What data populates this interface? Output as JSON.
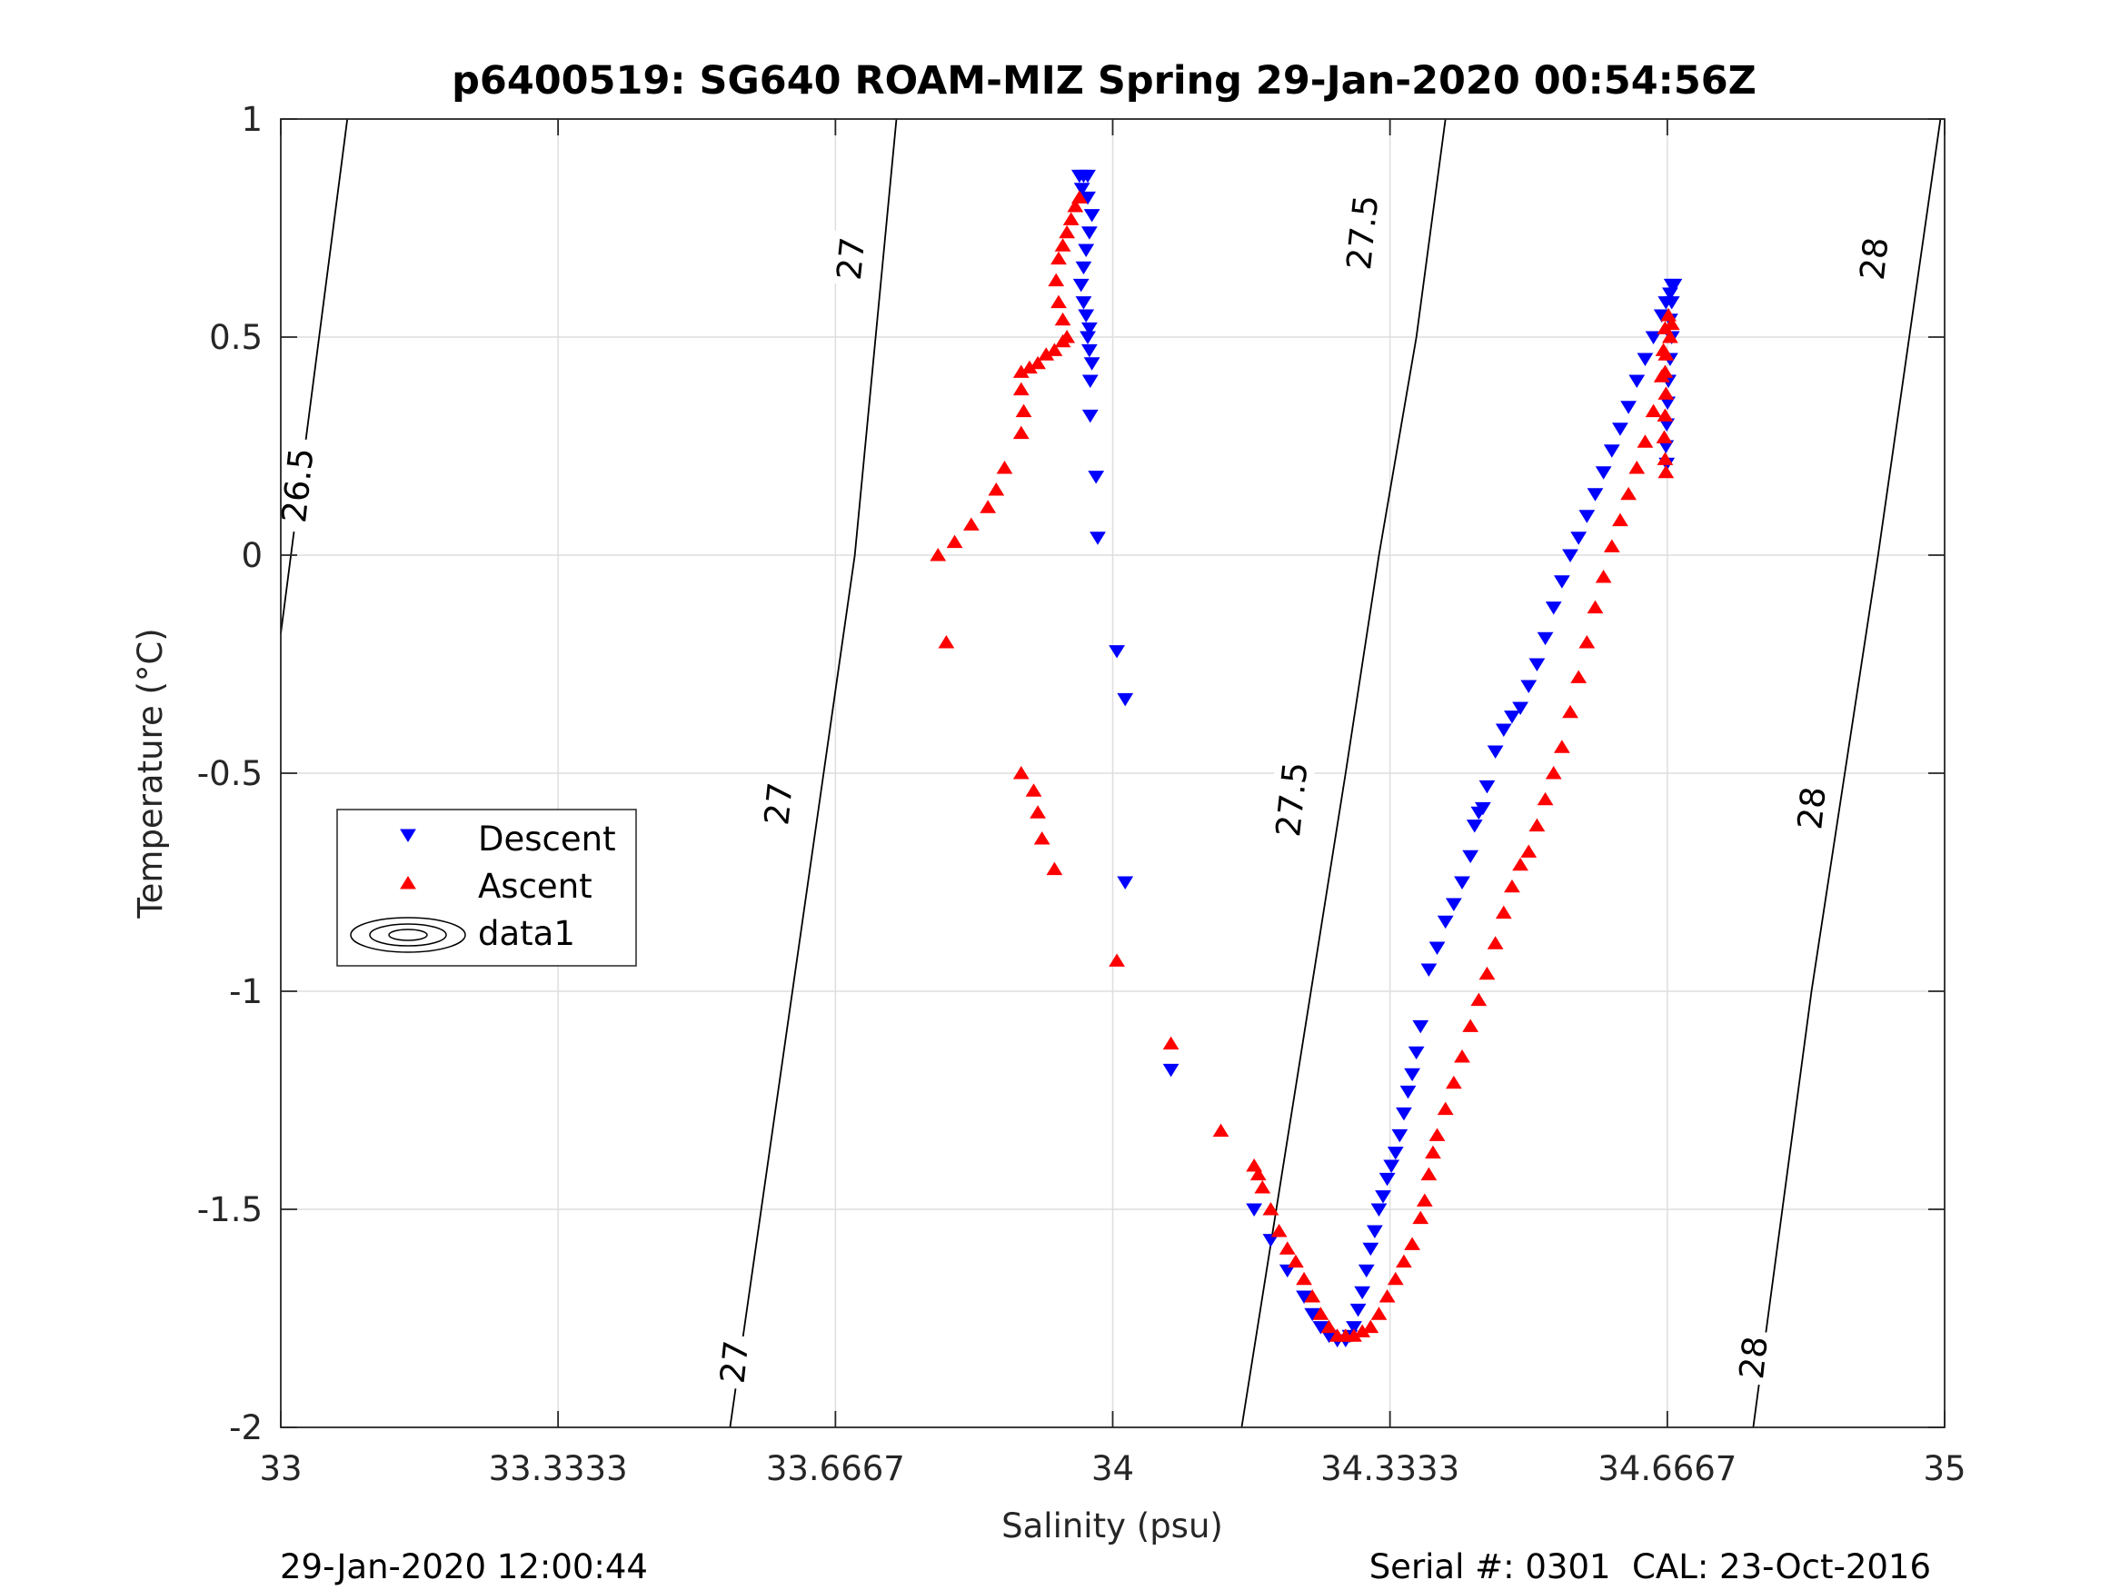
{
  "chart_data": {
    "type": "scatter",
    "title": "p6400519: SG640 ROAM-MIZ Spring 29-Jan-2020 00:54:56Z",
    "xlabel": "Salinity (psu)",
    "ylabel": "Temperature (°C)",
    "xlim": [
      33,
      35
    ],
    "ylim": [
      -2,
      1
    ],
    "xticks": [
      33,
      33.3333,
      33.6667,
      34,
      34.3333,
      34.6667,
      35
    ],
    "xtick_labels": [
      "33",
      "33.3333",
      "33.6667",
      "34",
      "34.3333",
      "34.6667",
      "35"
    ],
    "yticks": [
      1,
      0.5,
      0,
      -0.5,
      -1,
      -1.5,
      -2
    ],
    "ytick_labels": [
      "1",
      "0.5",
      "0",
      "-0.5",
      "-1",
      "-1.5",
      "-2"
    ],
    "grid": true,
    "legend": {
      "placement": "left-middle",
      "entries": [
        "Descent",
        "Ascent",
        "data1"
      ]
    },
    "series": [
      {
        "name": "Descent",
        "color": "#0000ff",
        "marker": "triangle-down",
        "points": [
          [
            33.96,
            0.87
          ],
          [
            33.965,
            0.87
          ],
          [
            33.97,
            0.87
          ],
          [
            33.963,
            0.84
          ],
          [
            33.97,
            0.82
          ],
          [
            33.975,
            0.78
          ],
          [
            33.972,
            0.74
          ],
          [
            33.968,
            0.7
          ],
          [
            33.965,
            0.66
          ],
          [
            33.962,
            0.62
          ],
          [
            33.965,
            0.58
          ],
          [
            33.968,
            0.55
          ],
          [
            33.972,
            0.52
          ],
          [
            33.97,
            0.5
          ],
          [
            33.972,
            0.47
          ],
          [
            33.975,
            0.44
          ],
          [
            33.973,
            0.4
          ],
          [
            33.973,
            0.32
          ],
          [
            33.98,
            0.18
          ],
          [
            33.982,
            0.04
          ],
          [
            34.005,
            -0.22
          ],
          [
            34.015,
            -0.33
          ],
          [
            34.015,
            -0.75
          ],
          [
            34.07,
            -1.18
          ],
          [
            34.17,
            -1.5
          ],
          [
            34.19,
            -1.57
          ],
          [
            34.21,
            -1.64
          ],
          [
            34.23,
            -1.7
          ],
          [
            34.24,
            -1.74
          ],
          [
            34.25,
            -1.77
          ],
          [
            34.26,
            -1.79
          ],
          [
            34.27,
            -1.8
          ],
          [
            34.28,
            -1.8
          ],
          [
            34.285,
            -1.79
          ],
          [
            34.29,
            -1.77
          ],
          [
            34.295,
            -1.73
          ],
          [
            34.3,
            -1.69
          ],
          [
            34.305,
            -1.64
          ],
          [
            34.31,
            -1.59
          ],
          [
            34.315,
            -1.55
          ],
          [
            34.32,
            -1.5
          ],
          [
            34.325,
            -1.47
          ],
          [
            34.33,
            -1.43
          ],
          [
            34.335,
            -1.4
          ],
          [
            34.34,
            -1.37
          ],
          [
            34.345,
            -1.33
          ],
          [
            34.35,
            -1.28
          ],
          [
            34.355,
            -1.23
          ],
          [
            34.36,
            -1.19
          ],
          [
            34.365,
            -1.14
          ],
          [
            34.37,
            -1.08
          ],
          [
            34.38,
            -0.95
          ],
          [
            34.39,
            -0.9
          ],
          [
            34.4,
            -0.84
          ],
          [
            34.41,
            -0.8
          ],
          [
            34.42,
            -0.75
          ],
          [
            34.43,
            -0.69
          ],
          [
            34.435,
            -0.62
          ],
          [
            34.44,
            -0.59
          ],
          [
            34.445,
            -0.58
          ],
          [
            34.45,
            -0.53
          ],
          [
            34.46,
            -0.45
          ],
          [
            34.47,
            -0.4
          ],
          [
            34.48,
            -0.37
          ],
          [
            34.49,
            -0.35
          ],
          [
            34.5,
            -0.3
          ],
          [
            34.51,
            -0.25
          ],
          [
            34.52,
            -0.19
          ],
          [
            34.53,
            -0.12
          ],
          [
            34.54,
            -0.06
          ],
          [
            34.55,
            0.0
          ],
          [
            34.56,
            0.04
          ],
          [
            34.57,
            0.09
          ],
          [
            34.58,
            0.14
          ],
          [
            34.59,
            0.19
          ],
          [
            34.6,
            0.24
          ],
          [
            34.61,
            0.29
          ],
          [
            34.62,
            0.34
          ],
          [
            34.63,
            0.4
          ],
          [
            34.64,
            0.45
          ],
          [
            34.65,
            0.5
          ],
          [
            34.66,
            0.55
          ],
          [
            34.665,
            0.58
          ],
          [
            34.67,
            0.6
          ],
          [
            34.672,
            0.62
          ],
          [
            34.675,
            0.62
          ],
          [
            34.672,
            0.58
          ],
          [
            34.67,
            0.54
          ],
          [
            34.672,
            0.5
          ],
          [
            34.67,
            0.45
          ],
          [
            34.668,
            0.4
          ],
          [
            34.667,
            0.35
          ],
          [
            34.666,
            0.3
          ],
          [
            34.665,
            0.25
          ],
          [
            34.666,
            0.21
          ]
        ]
      },
      {
        "name": "Ascent",
        "color": "#ff0000",
        "marker": "triangle-up",
        "points": [
          [
            33.96,
            0.82
          ],
          [
            33.955,
            0.8
          ],
          [
            33.95,
            0.77
          ],
          [
            33.945,
            0.74
          ],
          [
            33.94,
            0.71
          ],
          [
            33.935,
            0.68
          ],
          [
            33.932,
            0.63
          ],
          [
            33.935,
            0.58
          ],
          [
            33.94,
            0.54
          ],
          [
            33.945,
            0.5
          ],
          [
            33.94,
            0.49
          ],
          [
            33.93,
            0.47
          ],
          [
            33.92,
            0.46
          ],
          [
            33.91,
            0.44
          ],
          [
            33.9,
            0.43
          ],
          [
            33.89,
            0.42
          ],
          [
            33.89,
            0.38
          ],
          [
            33.893,
            0.33
          ],
          [
            33.89,
            0.28
          ],
          [
            33.87,
            0.2
          ],
          [
            33.86,
            0.15
          ],
          [
            33.85,
            0.11
          ],
          [
            33.83,
            0.07
          ],
          [
            33.81,
            0.03
          ],
          [
            33.79,
            -0.0
          ],
          [
            33.8,
            -0.2
          ],
          [
            33.89,
            -0.5
          ],
          [
            33.905,
            -0.54
          ],
          [
            33.91,
            -0.59
          ],
          [
            33.915,
            -0.65
          ],
          [
            33.93,
            -0.72
          ],
          [
            34.005,
            -0.93
          ],
          [
            34.07,
            -1.12
          ],
          [
            34.13,
            -1.32
          ],
          [
            34.17,
            -1.4
          ],
          [
            34.175,
            -1.42
          ],
          [
            34.18,
            -1.45
          ],
          [
            34.19,
            -1.5
          ],
          [
            34.2,
            -1.55
          ],
          [
            34.21,
            -1.59
          ],
          [
            34.22,
            -1.62
          ],
          [
            34.23,
            -1.66
          ],
          [
            34.24,
            -1.7
          ],
          [
            34.25,
            -1.74
          ],
          [
            34.26,
            -1.77
          ],
          [
            34.27,
            -1.79
          ],
          [
            34.28,
            -1.79
          ],
          [
            34.29,
            -1.79
          ],
          [
            34.3,
            -1.78
          ],
          [
            34.31,
            -1.77
          ],
          [
            34.32,
            -1.74
          ],
          [
            34.33,
            -1.7
          ],
          [
            34.34,
            -1.66
          ],
          [
            34.35,
            -1.62
          ],
          [
            34.36,
            -1.58
          ],
          [
            34.37,
            -1.52
          ],
          [
            34.375,
            -1.48
          ],
          [
            34.38,
            -1.42
          ],
          [
            34.385,
            -1.37
          ],
          [
            34.39,
            -1.33
          ],
          [
            34.4,
            -1.27
          ],
          [
            34.41,
            -1.21
          ],
          [
            34.42,
            -1.15
          ],
          [
            34.43,
            -1.08
          ],
          [
            34.44,
            -1.02
          ],
          [
            34.45,
            -0.96
          ],
          [
            34.46,
            -0.89
          ],
          [
            34.47,
            -0.82
          ],
          [
            34.48,
            -0.76
          ],
          [
            34.49,
            -0.71
          ],
          [
            34.5,
            -0.68
          ],
          [
            34.51,
            -0.62
          ],
          [
            34.52,
            -0.56
          ],
          [
            34.53,
            -0.5
          ],
          [
            34.54,
            -0.44
          ],
          [
            34.55,
            -0.36
          ],
          [
            34.56,
            -0.28
          ],
          [
            34.57,
            -0.2
          ],
          [
            34.58,
            -0.12
          ],
          [
            34.59,
            -0.05
          ],
          [
            34.6,
            0.02
          ],
          [
            34.61,
            0.08
          ],
          [
            34.62,
            0.14
          ],
          [
            34.63,
            0.2
          ],
          [
            34.64,
            0.26
          ],
          [
            34.65,
            0.33
          ],
          [
            34.66,
            0.41
          ],
          [
            34.665,
            0.46
          ],
          [
            34.67,
            0.5
          ],
          [
            34.672,
            0.53
          ],
          [
            34.668,
            0.55
          ],
          [
            34.664,
            0.52
          ],
          [
            34.662,
            0.47
          ],
          [
            34.664,
            0.42
          ],
          [
            34.665,
            0.37
          ],
          [
            34.664,
            0.32
          ],
          [
            34.663,
            0.27
          ],
          [
            34.664,
            0.22
          ],
          [
            34.665,
            0.19
          ]
        ]
      }
    ],
    "contours": [
      {
        "level": "26.5",
        "points": [
          [
            33.0,
            -0.18
          ],
          [
            33.08,
            1.0
          ]
        ]
      },
      {
        "level": "27",
        "points": [
          [
            33.54,
            -2.0
          ],
          [
            33.69,
            0.0
          ],
          [
            33.74,
            1.0
          ]
        ]
      },
      {
        "level": "27.5",
        "points": [
          [
            34.155,
            -2.0
          ],
          [
            34.28,
            -0.5
          ],
          [
            34.32,
            0.0
          ],
          [
            34.365,
            0.5
          ],
          [
            34.4,
            1.0
          ]
        ]
      },
      {
        "level": "28",
        "points": [
          [
            34.77,
            -2.0
          ],
          [
            34.84,
            -1.0
          ],
          [
            34.92,
            0.0
          ],
          [
            34.995,
            1.0
          ]
        ]
      }
    ],
    "contour_labels": [
      {
        "text": "26.5",
        "x": 33.02,
        "y": 0.16
      },
      {
        "text": "27",
        "x": 33.685,
        "y": 0.68
      },
      {
        "text": "27",
        "x": 33.598,
        "y": -0.57
      },
      {
        "text": "27",
        "x": 33.545,
        "y": -1.85
      },
      {
        "text": "27.5",
        "x": 34.3,
        "y": 0.74
      },
      {
        "text": "27.5",
        "x": 34.215,
        "y": -0.56
      },
      {
        "text": "28",
        "x": 34.915,
        "y": 0.68
      },
      {
        "text": "28",
        "x": 34.84,
        "y": -0.58
      },
      {
        "text": "28",
        "x": 34.77,
        "y": -1.84
      }
    ]
  },
  "footer": {
    "timestamp": "29-Jan-2020 12:00:44",
    "serial": "Serial #: 0301  CAL: 23-Oct-2016"
  }
}
